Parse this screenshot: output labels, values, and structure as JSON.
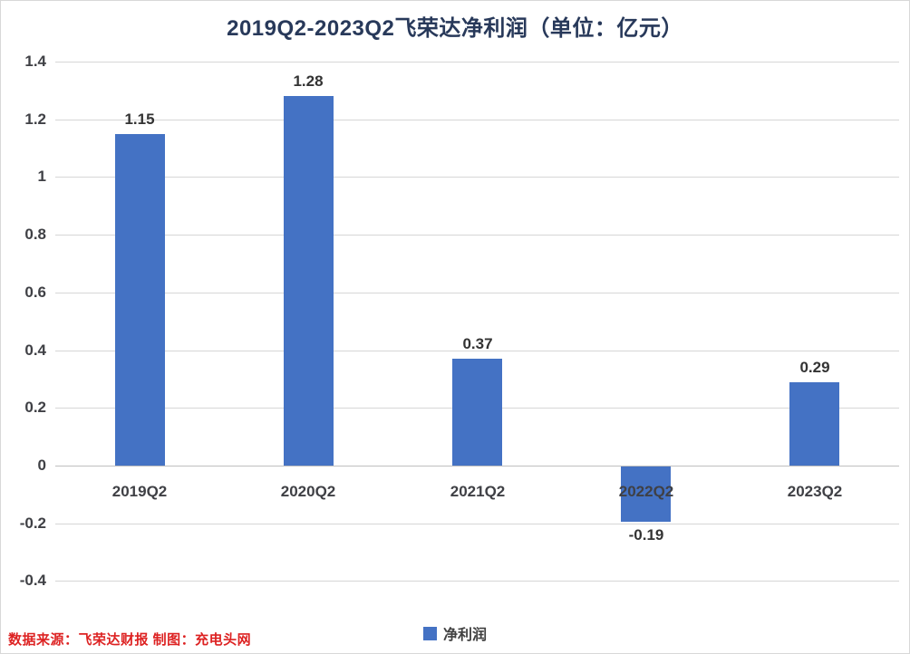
{
  "title": "2019Q2-2023Q2飞荣达净利润（单位：亿元）",
  "chart_data": {
    "type": "bar",
    "title": "2019Q2-2023Q2飞荣达净利润（单位：亿元）",
    "xlabel": "",
    "ylabel": "",
    "unit": "亿元",
    "categories": [
      "2019Q2",
      "2020Q2",
      "2021Q2",
      "2022Q2",
      "2023Q2"
    ],
    "series": [
      {
        "name": "净利润",
        "values": [
          1.15,
          1.28,
          0.37,
          -0.19,
          0.29
        ],
        "data_labels": [
          "1.15",
          "1.28",
          "0.37",
          "-0.19",
          "0.29"
        ],
        "color": "#4472C4"
      }
    ],
    "ylim": [
      -0.4,
      1.4
    ],
    "yticks": [
      {
        "value": 1.4,
        "label": "1.4"
      },
      {
        "value": 1.2,
        "label": "1.2"
      },
      {
        "value": 1.0,
        "label": "1"
      },
      {
        "value": 0.8,
        "label": "0.8"
      },
      {
        "value": 0.6,
        "label": "0.6"
      },
      {
        "value": 0.4,
        "label": "0.4"
      },
      {
        "value": 0.2,
        "label": "0.2"
      },
      {
        "value": 0.0,
        "label": "0"
      },
      {
        "value": -0.2,
        "label": "-0.2"
      },
      {
        "value": -0.4,
        "label": "-0.4"
      }
    ],
    "grid": true,
    "legend_position": "bottom-center"
  },
  "legend": {
    "items": [
      {
        "label": "净利润",
        "color": "#4472C4"
      }
    ]
  },
  "source_note": "数据来源：飞荣达财报 制图：充电头网",
  "colors": {
    "bar": "#4472C4",
    "title_text": "#28395A",
    "axis_text": "#3F4045",
    "value_label_text": "#333333",
    "gridline": "#D6D6D6",
    "zero_line": "#BFBFBF",
    "legend_text": "#404040",
    "source_text": "#DD2222",
    "background": "#FFFFFF"
  }
}
